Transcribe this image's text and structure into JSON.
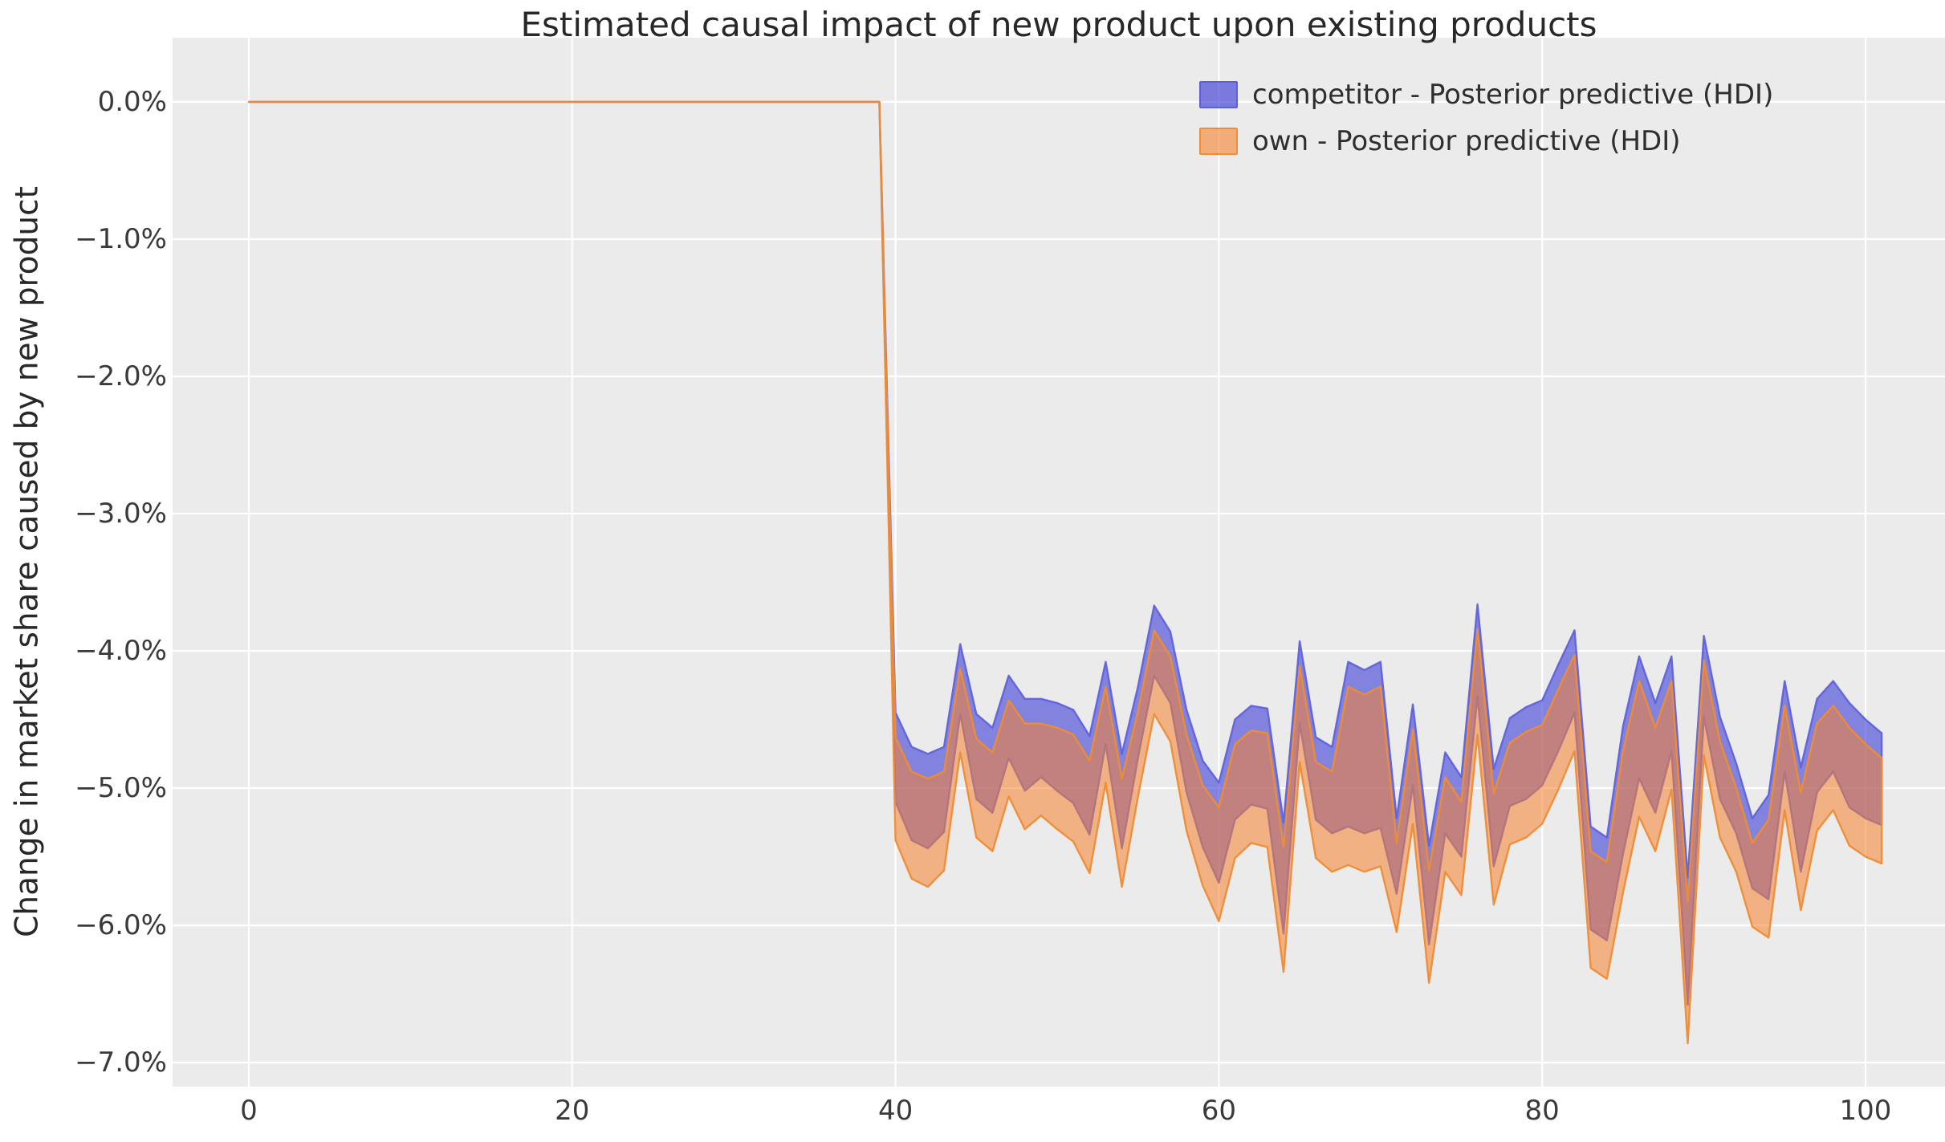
{
  "figure": {
    "background": "#ffffff",
    "plot_background": "#ebebeb",
    "grid_color": "#ffffff"
  },
  "chart_data": {
    "type": "area",
    "title": "Estimated causal impact of new product upon existing products",
    "xlabel": "",
    "ylabel": "Change in market share caused by new product",
    "xlim": [
      -5.2,
      104.9
    ],
    "ylim": [
      -7.18,
      0.47
    ],
    "grid": true,
    "legend_position": "upper right",
    "x_ticks": [
      {
        "label": "0",
        "value": 0
      },
      {
        "label": "20",
        "value": 20
      },
      {
        "label": "40",
        "value": 40
      },
      {
        "label": "60",
        "value": 60
      },
      {
        "label": "80",
        "value": 80
      },
      {
        "label": "100",
        "value": 100
      }
    ],
    "y_ticks": [
      {
        "label": "0.0%",
        "value": 0
      },
      {
        "label": "−1.0%",
        "value": -1
      },
      {
        "label": "−2.0%",
        "value": -2
      },
      {
        "label": "−3.0%",
        "value": -3
      },
      {
        "label": "−4.0%",
        "value": -4
      },
      {
        "label": "−5.0%",
        "value": -5
      },
      {
        "label": "−6.0%",
        "value": -6
      },
      {
        "label": "−7.0%",
        "value": -7
      }
    ],
    "x": [
      0,
      1,
      2,
      3,
      4,
      5,
      6,
      7,
      8,
      9,
      10,
      11,
      12,
      13,
      14,
      15,
      16,
      17,
      18,
      19,
      20,
      21,
      22,
      23,
      24,
      25,
      26,
      27,
      28,
      29,
      30,
      31,
      32,
      33,
      34,
      35,
      36,
      37,
      38,
      39,
      40,
      41,
      42,
      43,
      44,
      45,
      46,
      47,
      48,
      49,
      50,
      51,
      52,
      53,
      54,
      55,
      56,
      57,
      58,
      59,
      60,
      61,
      62,
      63,
      64,
      65,
      66,
      67,
      68,
      69,
      70,
      71,
      72,
      73,
      74,
      75,
      76,
      77,
      78,
      79,
      80,
      81,
      82,
      83,
      84,
      85,
      86,
      87,
      88,
      89,
      90,
      91,
      92,
      93,
      94,
      95,
      96,
      97,
      98,
      99,
      100,
      101
    ],
    "treatment_index": 40,
    "units": "percent",
    "series": [
      {
        "name": "competitor - Posterior predictive (HDI)",
        "fill": "#3c3cd7",
        "fill_opacity": 0.6,
        "edge": "#5b5edb",
        "edge_opacity": 0.9,
        "hdi_upper": [
          0,
          0,
          0,
          0,
          0,
          0,
          0,
          0,
          0,
          0,
          0,
          0,
          0,
          0,
          0,
          0,
          0,
          0,
          0,
          0,
          0,
          0,
          0,
          0,
          0,
          0,
          0,
          0,
          0,
          0,
          0,
          0,
          0,
          0,
          0,
          0,
          0,
          0,
          0,
          0,
          -4.45,
          -4.7,
          -4.75,
          -4.7,
          -3.95,
          -4.46,
          -4.56,
          -4.18,
          -4.35,
          -4.35,
          -4.38,
          -4.43,
          -4.62,
          -4.08,
          -4.75,
          -4.26,
          -3.67,
          -3.86,
          -4.43,
          -4.8,
          -4.96,
          -4.5,
          -4.4,
          -4.42,
          -5.25,
          -3.93,
          -4.63,
          -4.7,
          -4.08,
          -4.14,
          -4.08,
          -5.22,
          -4.39,
          -5.42,
          -4.74,
          -4.92,
          -3.66,
          -4.86,
          -4.49,
          -4.41,
          -4.36,
          -4.1,
          -3.85,
          -5.28,
          -5.36,
          -4.55,
          -4.04,
          -4.38,
          -4.04,
          -5.65,
          -3.89,
          -4.48,
          -4.82,
          -5.22,
          -5.05,
          -4.22,
          -4.85,
          -4.35,
          -4.22,
          -4.38,
          -4.5,
          -4.6
        ],
        "hdi_lower": [
          0,
          0,
          0,
          0,
          0,
          0,
          0,
          0,
          0,
          0,
          0,
          0,
          0,
          0,
          0,
          0,
          0,
          0,
          0,
          0,
          0,
          0,
          0,
          0,
          0,
          0,
          0,
          0,
          0,
          0,
          0,
          0,
          0,
          0,
          0,
          0,
          0,
          0,
          0,
          0,
          -5.1,
          -5.38,
          -5.44,
          -5.32,
          -4.46,
          -5.08,
          -5.18,
          -4.78,
          -5.02,
          -4.92,
          -5.02,
          -5.11,
          -5.34,
          -4.68,
          -5.44,
          -4.78,
          -4.18,
          -4.38,
          -5.03,
          -5.43,
          -5.69,
          -5.23,
          -5.12,
          -5.15,
          -6.06,
          -4.53,
          -5.23,
          -5.33,
          -5.28,
          -5.33,
          -5.29,
          -5.77,
          -4.98,
          -6.14,
          -5.33,
          -5.5,
          -4.33,
          -5.57,
          -5.13,
          -5.08,
          -4.98,
          -4.73,
          -4.45,
          -6.03,
          -6.11,
          -5.48,
          -4.93,
          -5.18,
          -4.73,
          -6.58,
          -4.48,
          -5.08,
          -5.33,
          -5.73,
          -5.81,
          -4.88,
          -5.61,
          -5.03,
          -4.88,
          -5.14,
          -5.22,
          -5.27
        ]
      },
      {
        "name": "own - Posterior predictive (HDI)",
        "fill": "#f5822d",
        "fill_opacity": 0.55,
        "edge": "#ee8c35",
        "edge_opacity": 0.95,
        "hdi_upper": [
          0,
          0,
          0,
          0,
          0,
          0,
          0,
          0,
          0,
          0,
          0,
          0,
          0,
          0,
          0,
          0,
          0,
          0,
          0,
          0,
          0,
          0,
          0,
          0,
          0,
          0,
          0,
          0,
          0,
          0,
          0,
          0,
          0,
          0,
          0,
          0,
          0,
          0,
          0,
          0,
          -4.63,
          -4.88,
          -4.93,
          -4.88,
          -4.13,
          -4.64,
          -4.74,
          -4.36,
          -4.53,
          -4.53,
          -4.56,
          -4.61,
          -4.8,
          -4.26,
          -4.93,
          -4.44,
          -3.85,
          -4.04,
          -4.61,
          -4.98,
          -5.14,
          -4.68,
          -4.58,
          -4.6,
          -5.43,
          -4.11,
          -4.81,
          -4.88,
          -4.26,
          -4.32,
          -4.26,
          -5.4,
          -4.57,
          -5.6,
          -4.92,
          -5.1,
          -3.84,
          -5.04,
          -4.67,
          -4.59,
          -4.54,
          -4.28,
          -4.03,
          -5.46,
          -5.54,
          -4.73,
          -4.22,
          -4.56,
          -4.22,
          -5.83,
          -4.07,
          -4.66,
          -5.0,
          -5.4,
          -5.23,
          -4.4,
          -5.03,
          -4.53,
          -4.4,
          -4.56,
          -4.68,
          -4.78
        ],
        "hdi_lower": [
          0,
          0,
          0,
          0,
          0,
          0,
          0,
          0,
          0,
          0,
          0,
          0,
          0,
          0,
          0,
          0,
          0,
          0,
          0,
          0,
          0,
          0,
          0,
          0,
          0,
          0,
          0,
          0,
          0,
          0,
          0,
          0,
          0,
          0,
          0,
          0,
          0,
          0,
          0,
          0,
          -5.38,
          -5.66,
          -5.72,
          -5.6,
          -4.74,
          -5.36,
          -5.46,
          -5.06,
          -5.3,
          -5.2,
          -5.3,
          -5.39,
          -5.62,
          -4.96,
          -5.72,
          -5.06,
          -4.46,
          -4.66,
          -5.31,
          -5.71,
          -5.97,
          -5.51,
          -5.4,
          -5.43,
          -6.34,
          -4.81,
          -5.51,
          -5.61,
          -5.56,
          -5.61,
          -5.57,
          -6.05,
          -5.26,
          -6.42,
          -5.61,
          -5.78,
          -4.61,
          -5.85,
          -5.41,
          -5.36,
          -5.26,
          -5.01,
          -4.73,
          -6.31,
          -6.39,
          -5.76,
          -5.21,
          -5.46,
          -5.01,
          -6.86,
          -4.76,
          -5.36,
          -5.61,
          -6.01,
          -6.09,
          -5.16,
          -5.89,
          -5.31,
          -5.16,
          -5.42,
          -5.5,
          -5.55
        ]
      }
    ]
  },
  "legend": {
    "items": [
      {
        "label": "competitor - Posterior predictive (HDI)"
      },
      {
        "label": "own - Posterior predictive (HDI)"
      }
    ]
  }
}
